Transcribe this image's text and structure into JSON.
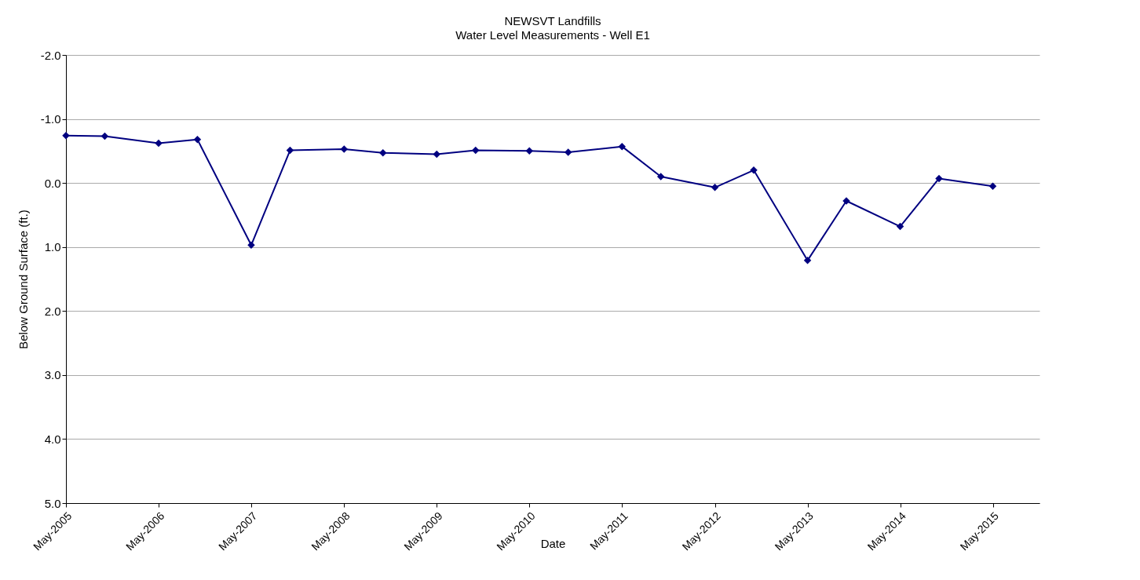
{
  "chart_data": {
    "type": "line",
    "title": "NEWSVT Landfills",
    "subtitle": "Water Level Measurements - Well E1",
    "xlabel": "Date",
    "ylabel": "Below Ground Surface (ft.)",
    "x": [
      "2005-05",
      "2005-10",
      "2006-05",
      "2006-10",
      "2007-05",
      "2007-10",
      "2008-05",
      "2008-10",
      "2009-05",
      "2009-10",
      "2010-05",
      "2010-10",
      "2011-05",
      "2011-10",
      "2012-05",
      "2012-10",
      "2013-05",
      "2013-10",
      "2014-05",
      "2014-10",
      "2015-05"
    ],
    "series": [
      {
        "color": "#000080",
        "values": [
          -0.74,
          -0.73,
          -0.62,
          -0.68,
          0.97,
          -0.51,
          -0.53,
          -0.47,
          -0.45,
          -0.51,
          -0.5,
          -0.48,
          -0.57,
          -0.1,
          0.07,
          -0.2,
          1.21,
          0.28,
          0.68,
          -0.07,
          0.05
        ]
      }
    ],
    "xlim": [
      "2005-05",
      "2015-11"
    ],
    "xticks": [
      {
        "value": "2005-05",
        "label": "May-2005"
      },
      {
        "value": "2006-05",
        "label": "May-2006"
      },
      {
        "value": "2007-05",
        "label": "May-2007"
      },
      {
        "value": "2008-05",
        "label": "May-2008"
      },
      {
        "value": "2009-05",
        "label": "May-2009"
      },
      {
        "value": "2010-05",
        "label": "May-2010"
      },
      {
        "value": "2011-05",
        "label": "May-2011"
      },
      {
        "value": "2012-05",
        "label": "May-2012"
      },
      {
        "value": "2013-05",
        "label": "May-2013"
      },
      {
        "value": "2014-05",
        "label": "May-2014"
      },
      {
        "value": "2015-05",
        "label": "May-2015"
      }
    ],
    "ylim": [
      5,
      -2
    ],
    "yticks": [
      {
        "value": -2,
        "label": "-2.0"
      },
      {
        "value": -1,
        "label": "-1.0"
      },
      {
        "value": 0,
        "label": "0.0"
      },
      {
        "value": 1,
        "label": "1.0"
      },
      {
        "value": 2,
        "label": "2.0"
      },
      {
        "value": 3,
        "label": "3.0"
      },
      {
        "value": 4,
        "label": "4.0"
      },
      {
        "value": 5,
        "label": "5.0"
      }
    ],
    "grid": "y",
    "marker": "diamond",
    "line_style": "solid"
  }
}
